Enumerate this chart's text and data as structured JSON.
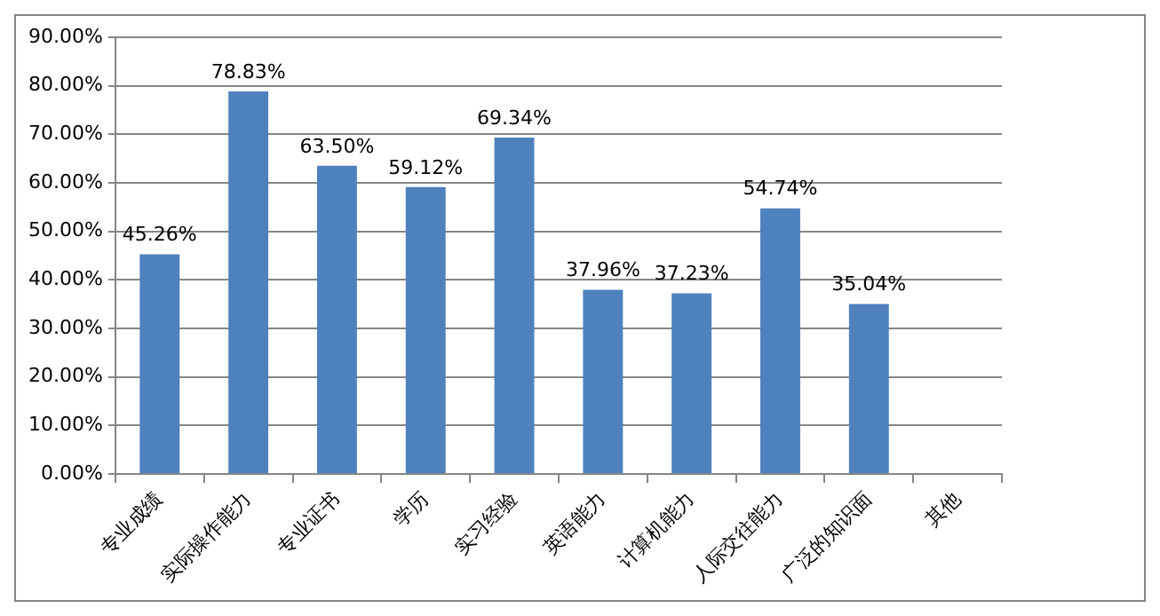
{
  "chart_data": {
    "type": "bar",
    "categories": [
      "专业成绩",
      "实际操作能力",
      "专业证书",
      "学历",
      "实习经验",
      "英语能力",
      "计算机能力",
      "人际交往能力",
      "广泛的知识面",
      "其他"
    ],
    "values": [
      45.26,
      78.83,
      63.5,
      59.12,
      69.34,
      37.96,
      37.23,
      54.74,
      35.04,
      null
    ],
    "value_labels": [
      "45.26%",
      "78.83%",
      "63.50%",
      "59.12%",
      "69.34%",
      "37.96%",
      "37.23%",
      "54.74%",
      "35.04%",
      null
    ],
    "color": "#4f81bd",
    "ylim": [
      0,
      90
    ],
    "yticks": [
      {
        "value": 0,
        "label": "0.00%"
      },
      {
        "value": 10,
        "label": "10.00%"
      },
      {
        "value": 20,
        "label": "20.00%"
      },
      {
        "value": 30,
        "label": "30.00%"
      },
      {
        "value": 40,
        "label": "40.00%"
      },
      {
        "value": 50,
        "label": "50.00%"
      },
      {
        "value": 60,
        "label": "60.00%"
      },
      {
        "value": 70,
        "label": "70.00%"
      },
      {
        "value": 80,
        "label": "80.00%"
      },
      {
        "value": 90,
        "label": "90.00%"
      }
    ],
    "grid": "y",
    "legend": false
  }
}
